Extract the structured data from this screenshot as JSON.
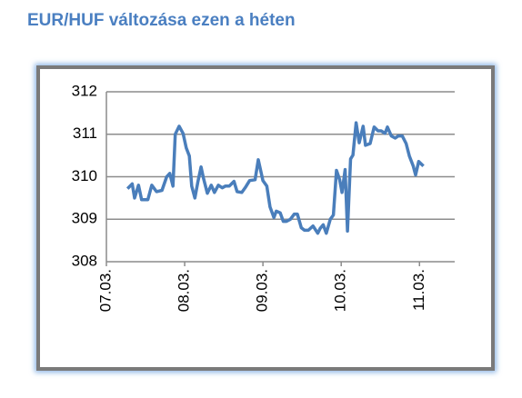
{
  "chart_data": {
    "type": "line",
    "title": "EUR/HUF változása ezen a héten",
    "x": [
      0.27,
      0.33,
      0.36,
      0.41,
      0.45,
      0.53,
      0.58,
      0.64,
      0.71,
      0.77,
      0.81,
      0.85,
      0.88,
      0.93,
      0.98,
      1.02,
      1.06,
      1.09,
      1.13,
      1.17,
      1.21,
      1.24,
      1.29,
      1.34,
      1.38,
      1.43,
      1.48,
      1.52,
      1.57,
      1.63,
      1.67,
      1.73,
      1.78,
      1.83,
      1.9,
      1.94,
      2.0,
      2.05,
      2.09,
      2.14,
      2.17,
      2.22,
      2.26,
      2.3,
      2.35,
      2.4,
      2.44,
      2.49,
      2.53,
      2.58,
      2.64,
      2.7,
      2.73,
      2.77,
      2.81,
      2.86,
      2.9,
      2.94,
      2.98,
      3.01,
      3.05,
      3.08,
      3.12,
      3.15,
      3.19,
      3.23,
      3.28,
      3.31,
      3.37,
      3.42,
      3.47,
      3.51,
      3.56,
      3.59,
      3.64,
      3.69,
      3.73,
      3.78,
      3.83,
      3.87,
      3.92,
      3.95,
      3.99,
      4.05
    ],
    "series": [
      {
        "color": "#4a7ebb",
        "values": [
          309.72,
          309.83,
          309.5,
          309.8,
          309.46,
          309.46,
          309.8,
          309.65,
          309.68,
          310.0,
          310.08,
          309.78,
          311.0,
          311.19,
          311.02,
          310.68,
          310.49,
          309.78,
          309.5,
          309.89,
          310.23,
          309.97,
          309.61,
          309.8,
          309.63,
          309.8,
          309.74,
          309.78,
          309.78,
          309.89,
          309.65,
          309.63,
          309.76,
          309.91,
          309.93,
          310.4,
          309.91,
          309.78,
          309.29,
          309.04,
          309.19,
          309.15,
          308.95,
          308.95,
          309.0,
          309.12,
          309.12,
          308.8,
          308.74,
          308.74,
          308.84,
          308.67,
          308.78,
          308.87,
          308.67,
          309.0,
          309.1,
          310.15,
          309.93,
          309.63,
          310.17,
          308.72,
          310.42,
          310.51,
          311.27,
          310.8,
          311.19,
          310.74,
          310.78,
          311.17,
          311.08,
          311.08,
          311.02,
          311.17,
          310.96,
          310.91,
          310.96,
          310.96,
          310.78,
          310.49,
          310.25,
          310.04,
          310.36,
          310.25
        ]
      }
    ],
    "xlim": [
      0,
      4.45
    ],
    "xticks": [
      {
        "value": 0,
        "label": "07.03."
      },
      {
        "value": 1,
        "label": "08.03."
      },
      {
        "value": 2,
        "label": "09.03."
      },
      {
        "value": 3,
        "label": "10.03."
      },
      {
        "value": 4,
        "label": "11.03."
      }
    ],
    "ylim": [
      308,
      312
    ],
    "yticks": [
      308,
      309,
      310,
      311,
      312
    ],
    "grid": true
  }
}
